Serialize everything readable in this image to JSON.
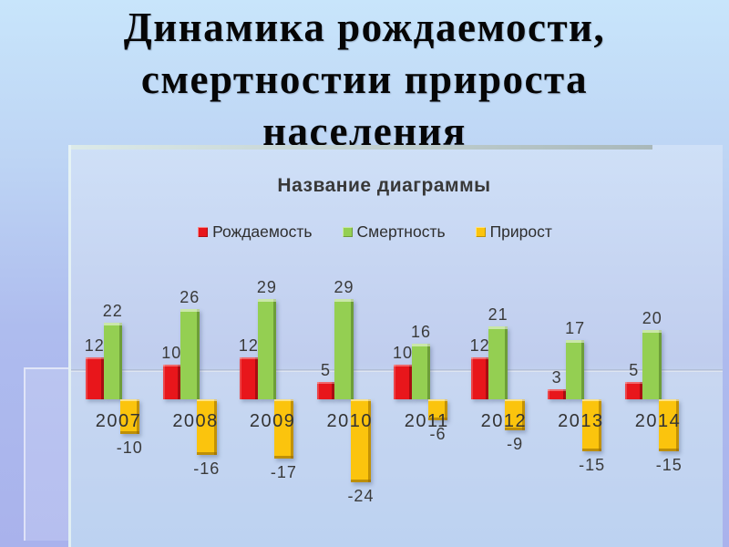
{
  "slide": {
    "title_lines": [
      "Динамика рождаемости,",
      "смертностии прироста",
      "населения"
    ]
  },
  "chart_data": {
    "type": "bar",
    "title": "Название диаграммы",
    "categories": [
      "2007",
      "2008",
      "2009",
      "2010",
      "2011",
      "2012",
      "2013",
      "2014"
    ],
    "series": [
      {
        "name": "Рождаемость",
        "color": "#e8161b",
        "values": [
          12,
          10,
          12,
          5,
          10,
          12,
          3,
          5
        ]
      },
      {
        "name": "Смертность",
        "color": "#94cf52",
        "values": [
          22,
          26,
          29,
          29,
          16,
          21,
          17,
          20
        ]
      },
      {
        "name": "Прирост",
        "color": "#fbc40d",
        "values": [
          -10,
          -16,
          -17,
          -24,
          -6,
          -9,
          -15,
          -15
        ]
      }
    ],
    "legend_position": "top",
    "grid": false,
    "data_labels": true,
    "xlabel": "",
    "ylabel": "",
    "ylim": [
      -24,
      29
    ]
  },
  "palette": {
    "slide_background_top": "#c8e5fb",
    "slide_background_bottom": "#a9b2ec",
    "panel_background": "#c0cdee",
    "label_text": "#3a3a3a",
    "title_text": "#060606"
  }
}
